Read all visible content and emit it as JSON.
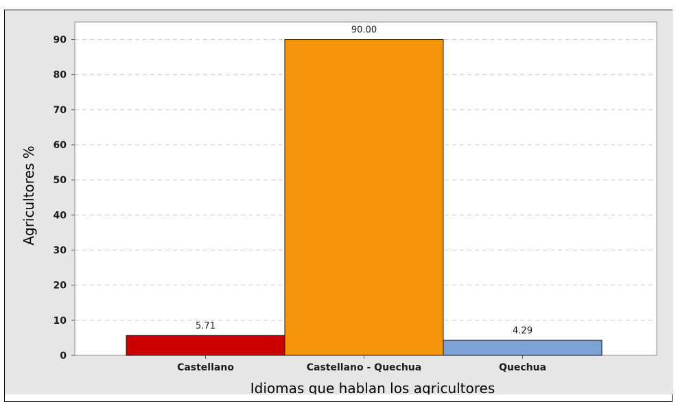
{
  "chart_data": {
    "type": "bar",
    "categories": [
      "Castellano",
      "Castellano - Quechua",
      "Quechua"
    ],
    "values": [
      5.71,
      90.0,
      4.29
    ],
    "data_labels": [
      "5.71",
      "90.00",
      "4.29"
    ],
    "colors": [
      "#cc0000",
      "#f5960a",
      "#7ba3d6"
    ],
    "xlabel": "Idiomas que hablan los agricultores",
    "ylabel": "Agricultores %",
    "ylim": [
      0,
      95
    ],
    "yticks": [
      0,
      10,
      20,
      30,
      40,
      50,
      60,
      70,
      80,
      90
    ],
    "grid": true,
    "background": "#ffffff",
    "outer_background": "#e6e6e6"
  }
}
